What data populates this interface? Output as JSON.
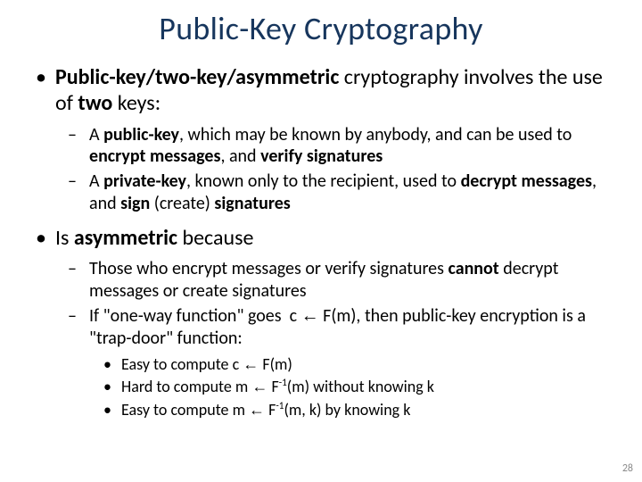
{
  "title": "Public-Key Cryptography",
  "bullet1_prefix_bold": "Public-key/two-key/asymmetric",
  "bullet1_mid": " cryptography involves the use of ",
  "bullet1_suffix_bold": "two",
  "bullet1_end": " keys:",
  "b1s1_a": "A ",
  "b1s1_b": "public-key",
  "b1s1_c": ", which may be known by anybody, and can be used to ",
  "b1s1_d": "encrypt messages",
  "b1s1_e": ", and ",
  "b1s1_f": "verify signatures",
  "b1s2_a": "A ",
  "b1s2_b": "private-key",
  "b1s2_c": ", known only to the recipient, used to ",
  "b1s2_d": "decrypt messages",
  "b1s2_e": ", and ",
  "b1s2_f": "sign",
  "b1s2_g": " (create) ",
  "b1s2_h": "signatures",
  "bullet2_a": "Is ",
  "bullet2_b": "asymmetric",
  "bullet2_c": " because",
  "b2s1_a": "Those who encrypt messages or verify signatures ",
  "b2s1_b": "cannot",
  "b2s1_c": " decrypt messages or create signatures",
  "b2s2": "If \"one-way function\" goes  c ← F(m), then public-key encryption is a \"trap-door\" function:",
  "b2s2_t1_a": "Easy to compute   c ",
  "b2s2_t1_b": " F(m)",
  "b2s2_t2_a": "Hard to compute  m ",
  "b2s2_t2_b": " F",
  "b2s2_t2_sup": "-1",
  "b2s2_t2_c": "(m) without knowing k",
  "b2s2_t3_a": "Easy to compute  m ",
  "b2s2_t3_b": " F",
  "b2s2_t3_sup": "-1",
  "b2s2_t3_c": "(m, k)      by knowing k",
  "arrow": "←",
  "pagenum": "28"
}
